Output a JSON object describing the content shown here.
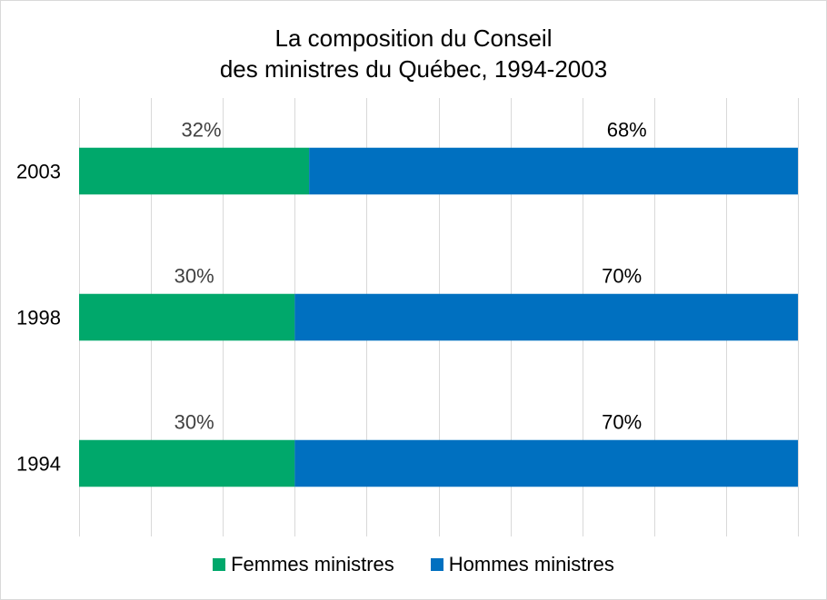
{
  "chart_data": {
    "type": "bar",
    "orientation": "horizontal",
    "stacked": true,
    "title_lines": [
      "La composition  du Conseil",
      "des ministres du Québec, 1994-2003"
    ],
    "categories": [
      "2003",
      "1998",
      "1994"
    ],
    "series": [
      {
        "name": "Femmes ministres",
        "values": [
          32,
          30,
          30
        ],
        "labels": [
          "32%",
          "30%",
          "30%"
        ],
        "color": "#00a86b"
      },
      {
        "name": "Hommes ministres",
        "values": [
          68,
          70,
          70
        ],
        "labels": [
          "68%",
          "70%",
          "70%"
        ],
        "color": "#0070c0"
      }
    ],
    "xlim": [
      0,
      100
    ],
    "grid": true,
    "legend_position": "bottom"
  }
}
